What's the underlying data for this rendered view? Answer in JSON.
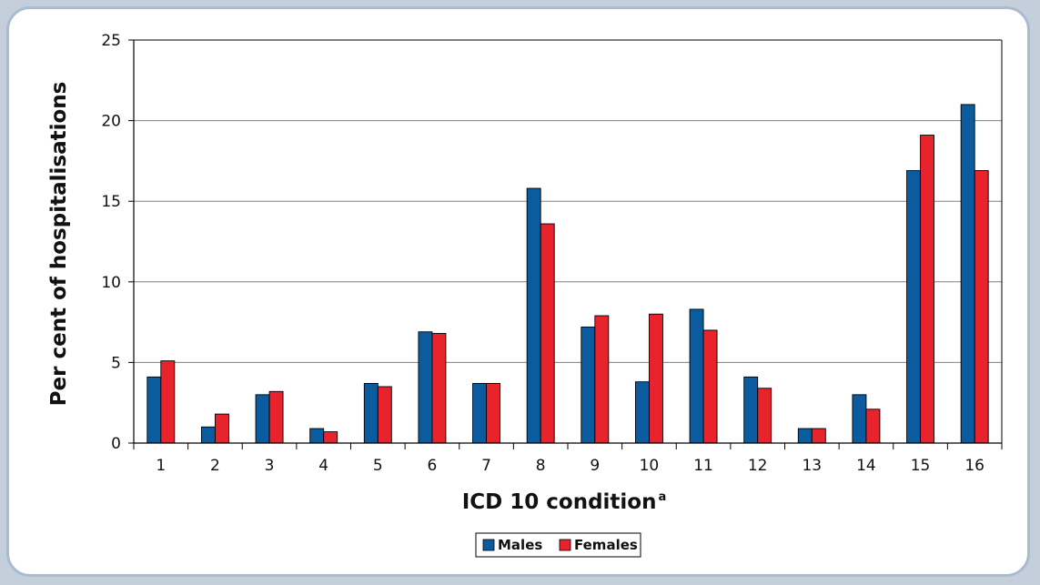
{
  "chart_data": {
    "type": "bar",
    "title": "",
    "xlabel": "ICD 10condition",
    "xlabel_main": "ICD 10 condition",
    "xlabel_superscript": "a",
    "ylabel": "Per cent of hospitalisations",
    "ylim": [
      0,
      25
    ],
    "yticks": [
      0,
      5,
      10,
      15,
      20,
      25
    ],
    "grid": true,
    "legend_position": "bottom-center",
    "categories": [
      "1",
      "2",
      "3",
      "4",
      "5",
      "6",
      "7",
      "8",
      "9",
      "10",
      "11",
      "12",
      "13",
      "14",
      "15",
      "16"
    ],
    "series": [
      {
        "name": "Males",
        "color": "#0b5c9e",
        "values": [
          4.1,
          1.0,
          3.0,
          0.9,
          3.7,
          6.9,
          3.7,
          15.8,
          7.2,
          3.8,
          8.3,
          4.1,
          0.9,
          3.0,
          16.9,
          21.0
        ]
      },
      {
        "name": "Females",
        "color": "#e8232b",
        "values": [
          5.1,
          1.8,
          3.2,
          0.7,
          3.5,
          6.8,
          3.7,
          13.6,
          7.9,
          8.0,
          7.0,
          3.4,
          0.9,
          2.1,
          19.1,
          16.9
        ]
      }
    ]
  }
}
